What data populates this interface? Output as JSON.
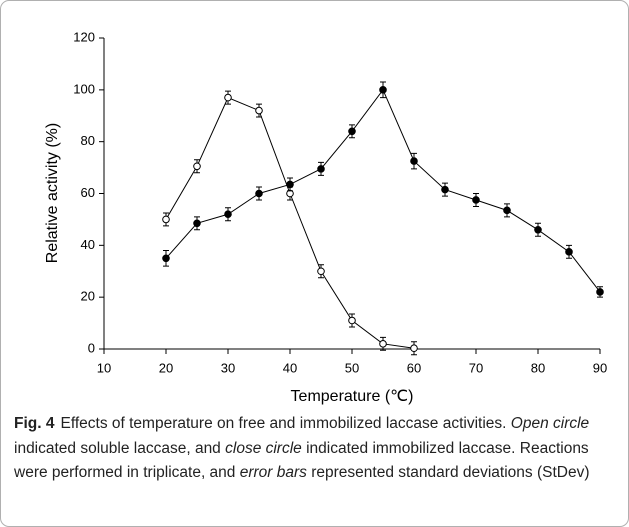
{
  "chart_data": {
    "type": "line",
    "xlabel": "Temperature (℃)",
    "ylabel": "Relative activity (%)",
    "xlim": [
      10,
      90
    ],
    "xticks": [
      10,
      20,
      30,
      40,
      50,
      60,
      70,
      80,
      90
    ],
    "ylim": [
      0,
      120
    ],
    "yticks": [
      0,
      20,
      40,
      60,
      80,
      100,
      120
    ],
    "grid": false,
    "series": [
      {
        "color": "#000000",
        "marker": "open",
        "x": [
          20,
          25,
          30,
          35,
          40,
          45,
          50,
          55,
          60
        ],
        "values": [
          50,
          70.5,
          97,
          92,
          60,
          30,
          11,
          2,
          0.3
        ],
        "errors": [
          2.5,
          2.5,
          2.5,
          2.5,
          2.5,
          2.5,
          2.5,
          2.5,
          2.5
        ]
      },
      {
        "color": "#000000",
        "marker": "filled",
        "x": [
          20,
          25,
          30,
          35,
          40,
          45,
          50,
          55,
          60,
          65,
          70,
          75,
          80,
          85,
          90
        ],
        "values": [
          35,
          48.5,
          52,
          60,
          63.5,
          69.5,
          84,
          100,
          72.5,
          61.5,
          57.5,
          53.5,
          46,
          37.5,
          22
        ],
        "errors": [
          3,
          2.5,
          2.5,
          2.5,
          2.5,
          2.5,
          2.5,
          3,
          3,
          2.5,
          2.5,
          2.5,
          2.5,
          2.5,
          2
        ]
      }
    ]
  },
  "caption": {
    "label": "Fig. 4",
    "segments": [
      {
        "text": "Effects of temperature on free and immobilized laccase activities. ",
        "italic": false
      },
      {
        "text": "Open circle",
        "italic": true
      },
      {
        "text": " indicated soluble laccase, and ",
        "italic": false
      },
      {
        "text": "close circle",
        "italic": true
      },
      {
        "text": " indicated immobilized laccase. Reactions were performed in triplicate, and ",
        "italic": false
      },
      {
        "text": "error bars",
        "italic": true
      },
      {
        "text": " represented standard deviations (StDev)",
        "italic": false
      }
    ]
  }
}
